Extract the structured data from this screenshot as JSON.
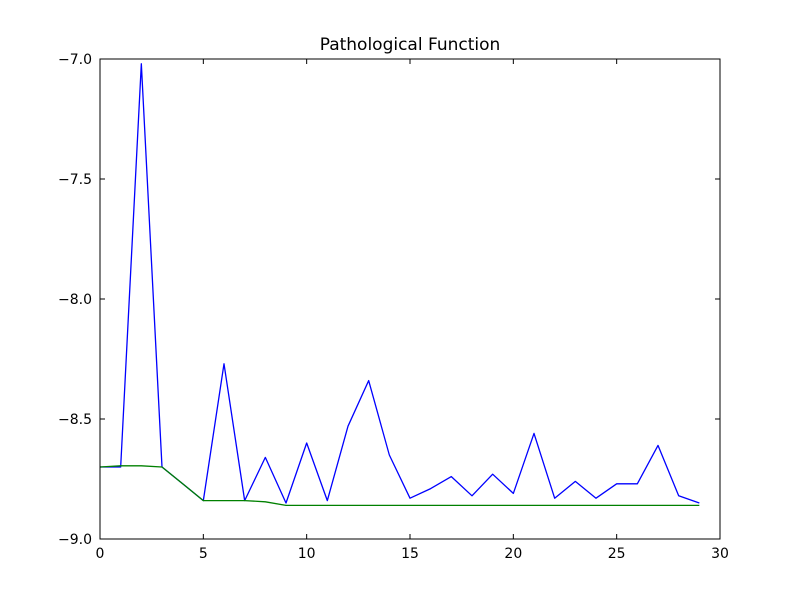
{
  "figure": {
    "background": "#ffffff",
    "axes_color": "#000000"
  },
  "chart_data": {
    "type": "line",
    "title": "Pathological Function",
    "xlabel": "",
    "ylabel": "",
    "xlim": [
      0,
      30
    ],
    "ylim": [
      -9.0,
      -7.0
    ],
    "grid": false,
    "legend": "none",
    "x": [
      0,
      1,
      2,
      3,
      4,
      5,
      6,
      7,
      8,
      9,
      10,
      11,
      12,
      13,
      14,
      15,
      16,
      17,
      18,
      19,
      20,
      21,
      22,
      23,
      24,
      25,
      26,
      27,
      28,
      29
    ],
    "series": [
      {
        "name": "blue-series",
        "color": "#0000ff",
        "values": [
          -8.7,
          -8.7,
          -7.02,
          -8.7,
          -8.77,
          -8.84,
          -8.27,
          -8.84,
          -8.66,
          -8.85,
          -8.6,
          -8.84,
          -8.53,
          -8.34,
          -8.65,
          -8.83,
          -8.79,
          -8.74,
          -8.82,
          -8.73,
          -8.81,
          -8.56,
          -8.83,
          -8.76,
          -8.83,
          -8.77,
          -8.77,
          -8.61,
          -8.82,
          -8.85
        ]
      },
      {
        "name": "green-series",
        "color": "#008000",
        "values": [
          -8.7,
          -8.695,
          -8.695,
          -8.7,
          -8.77,
          -8.84,
          -8.84,
          -8.84,
          -8.845,
          -8.86,
          -8.86,
          -8.86,
          -8.86,
          -8.86,
          -8.86,
          -8.86,
          -8.86,
          -8.86,
          -8.86,
          -8.86,
          -8.86,
          -8.86,
          -8.86,
          -8.86,
          -8.86,
          -8.86,
          -8.86,
          -8.86,
          -8.86,
          -8.86
        ]
      }
    ],
    "xticks": {
      "values": [
        0,
        5,
        10,
        15,
        20,
        25,
        30
      ],
      "labels": [
        "0",
        "5",
        "10",
        "15",
        "20",
        "25",
        "30"
      ]
    },
    "yticks": {
      "values": [
        -7.0,
        -7.5,
        -8.0,
        -8.5,
        -9.0
      ],
      "labels": [
        "−7.0",
        "−7.5",
        "−8.0",
        "−8.5",
        "−9.0"
      ]
    }
  }
}
